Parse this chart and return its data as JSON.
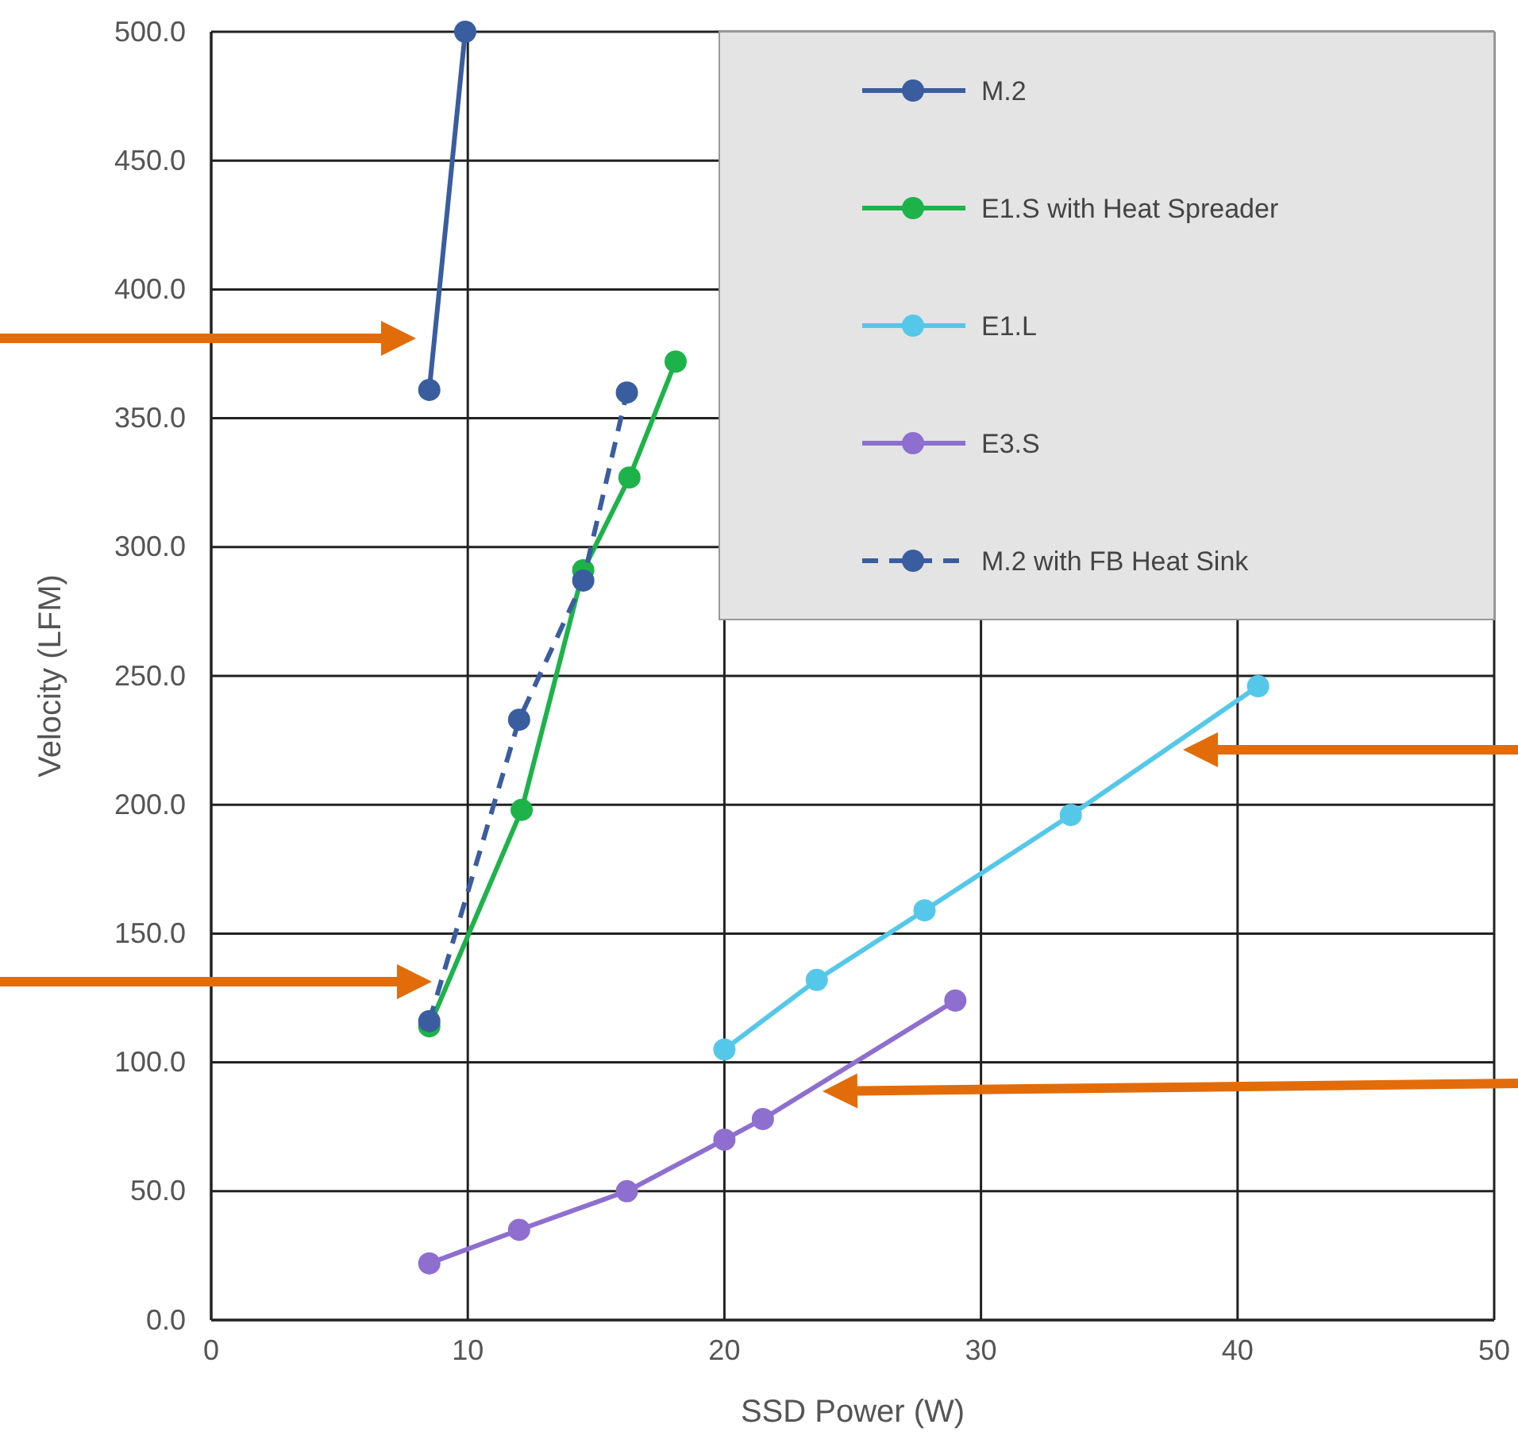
{
  "chart_data": {
    "type": "line",
    "xlabel": "SSD Power (W)",
    "ylabel": "Velocity (LFM)",
    "xlim": [
      0,
      50
    ],
    "xticks": [
      0,
      10,
      20,
      30,
      40,
      50
    ],
    "ylim": [
      0,
      500
    ],
    "yticks": [
      {
        "value": 0,
        "label": "0.0"
      },
      {
        "value": 50,
        "label": "50.0"
      },
      {
        "value": 100,
        "label": "100.0"
      },
      {
        "value": 150,
        "label": "150.0"
      },
      {
        "value": 200,
        "label": "200.0"
      },
      {
        "value": 250,
        "label": "250.0"
      },
      {
        "value": 300,
        "label": "300.0"
      },
      {
        "value": 350,
        "label": "350.0"
      },
      {
        "value": 400,
        "label": "400.0"
      },
      {
        "value": 450,
        "label": "450.0"
      },
      {
        "value": 500,
        "label": "500.0"
      }
    ],
    "grid": true,
    "legend": "top right",
    "marker": "circle",
    "series": [
      {
        "name": "M.2",
        "color": "#3a5da0",
        "x": [
          8.5,
          9.9
        ],
        "values": [
          361,
          500
        ]
      },
      {
        "name": "E1.S with Heat Spreader",
        "color": "#1db34a",
        "x": [
          8.5,
          12.1,
          14.5,
          16.3,
          18.1
        ],
        "values": [
          114,
          198,
          291,
          327,
          372
        ]
      },
      {
        "name": "E1.L",
        "color": "#55c8ea",
        "x": [
          20,
          23.6,
          27.8,
          33.5,
          40.8
        ],
        "values": [
          105,
          132,
          159,
          196,
          246
        ]
      },
      {
        "name": "E3.S",
        "color": "#8e6fcf",
        "x": [
          8.5,
          12.0,
          16.2,
          20,
          21.5,
          29
        ],
        "values": [
          22,
          35,
          50,
          70,
          78,
          124
        ]
      },
      {
        "name": "M.2 with FB Heat Sink",
        "color": "#3a5da0",
        "line_style": "dashed",
        "x": [
          8.5,
          12.0,
          14.5,
          16.2
        ],
        "values": [
          116,
          233,
          287,
          360
        ]
      }
    ]
  }
}
